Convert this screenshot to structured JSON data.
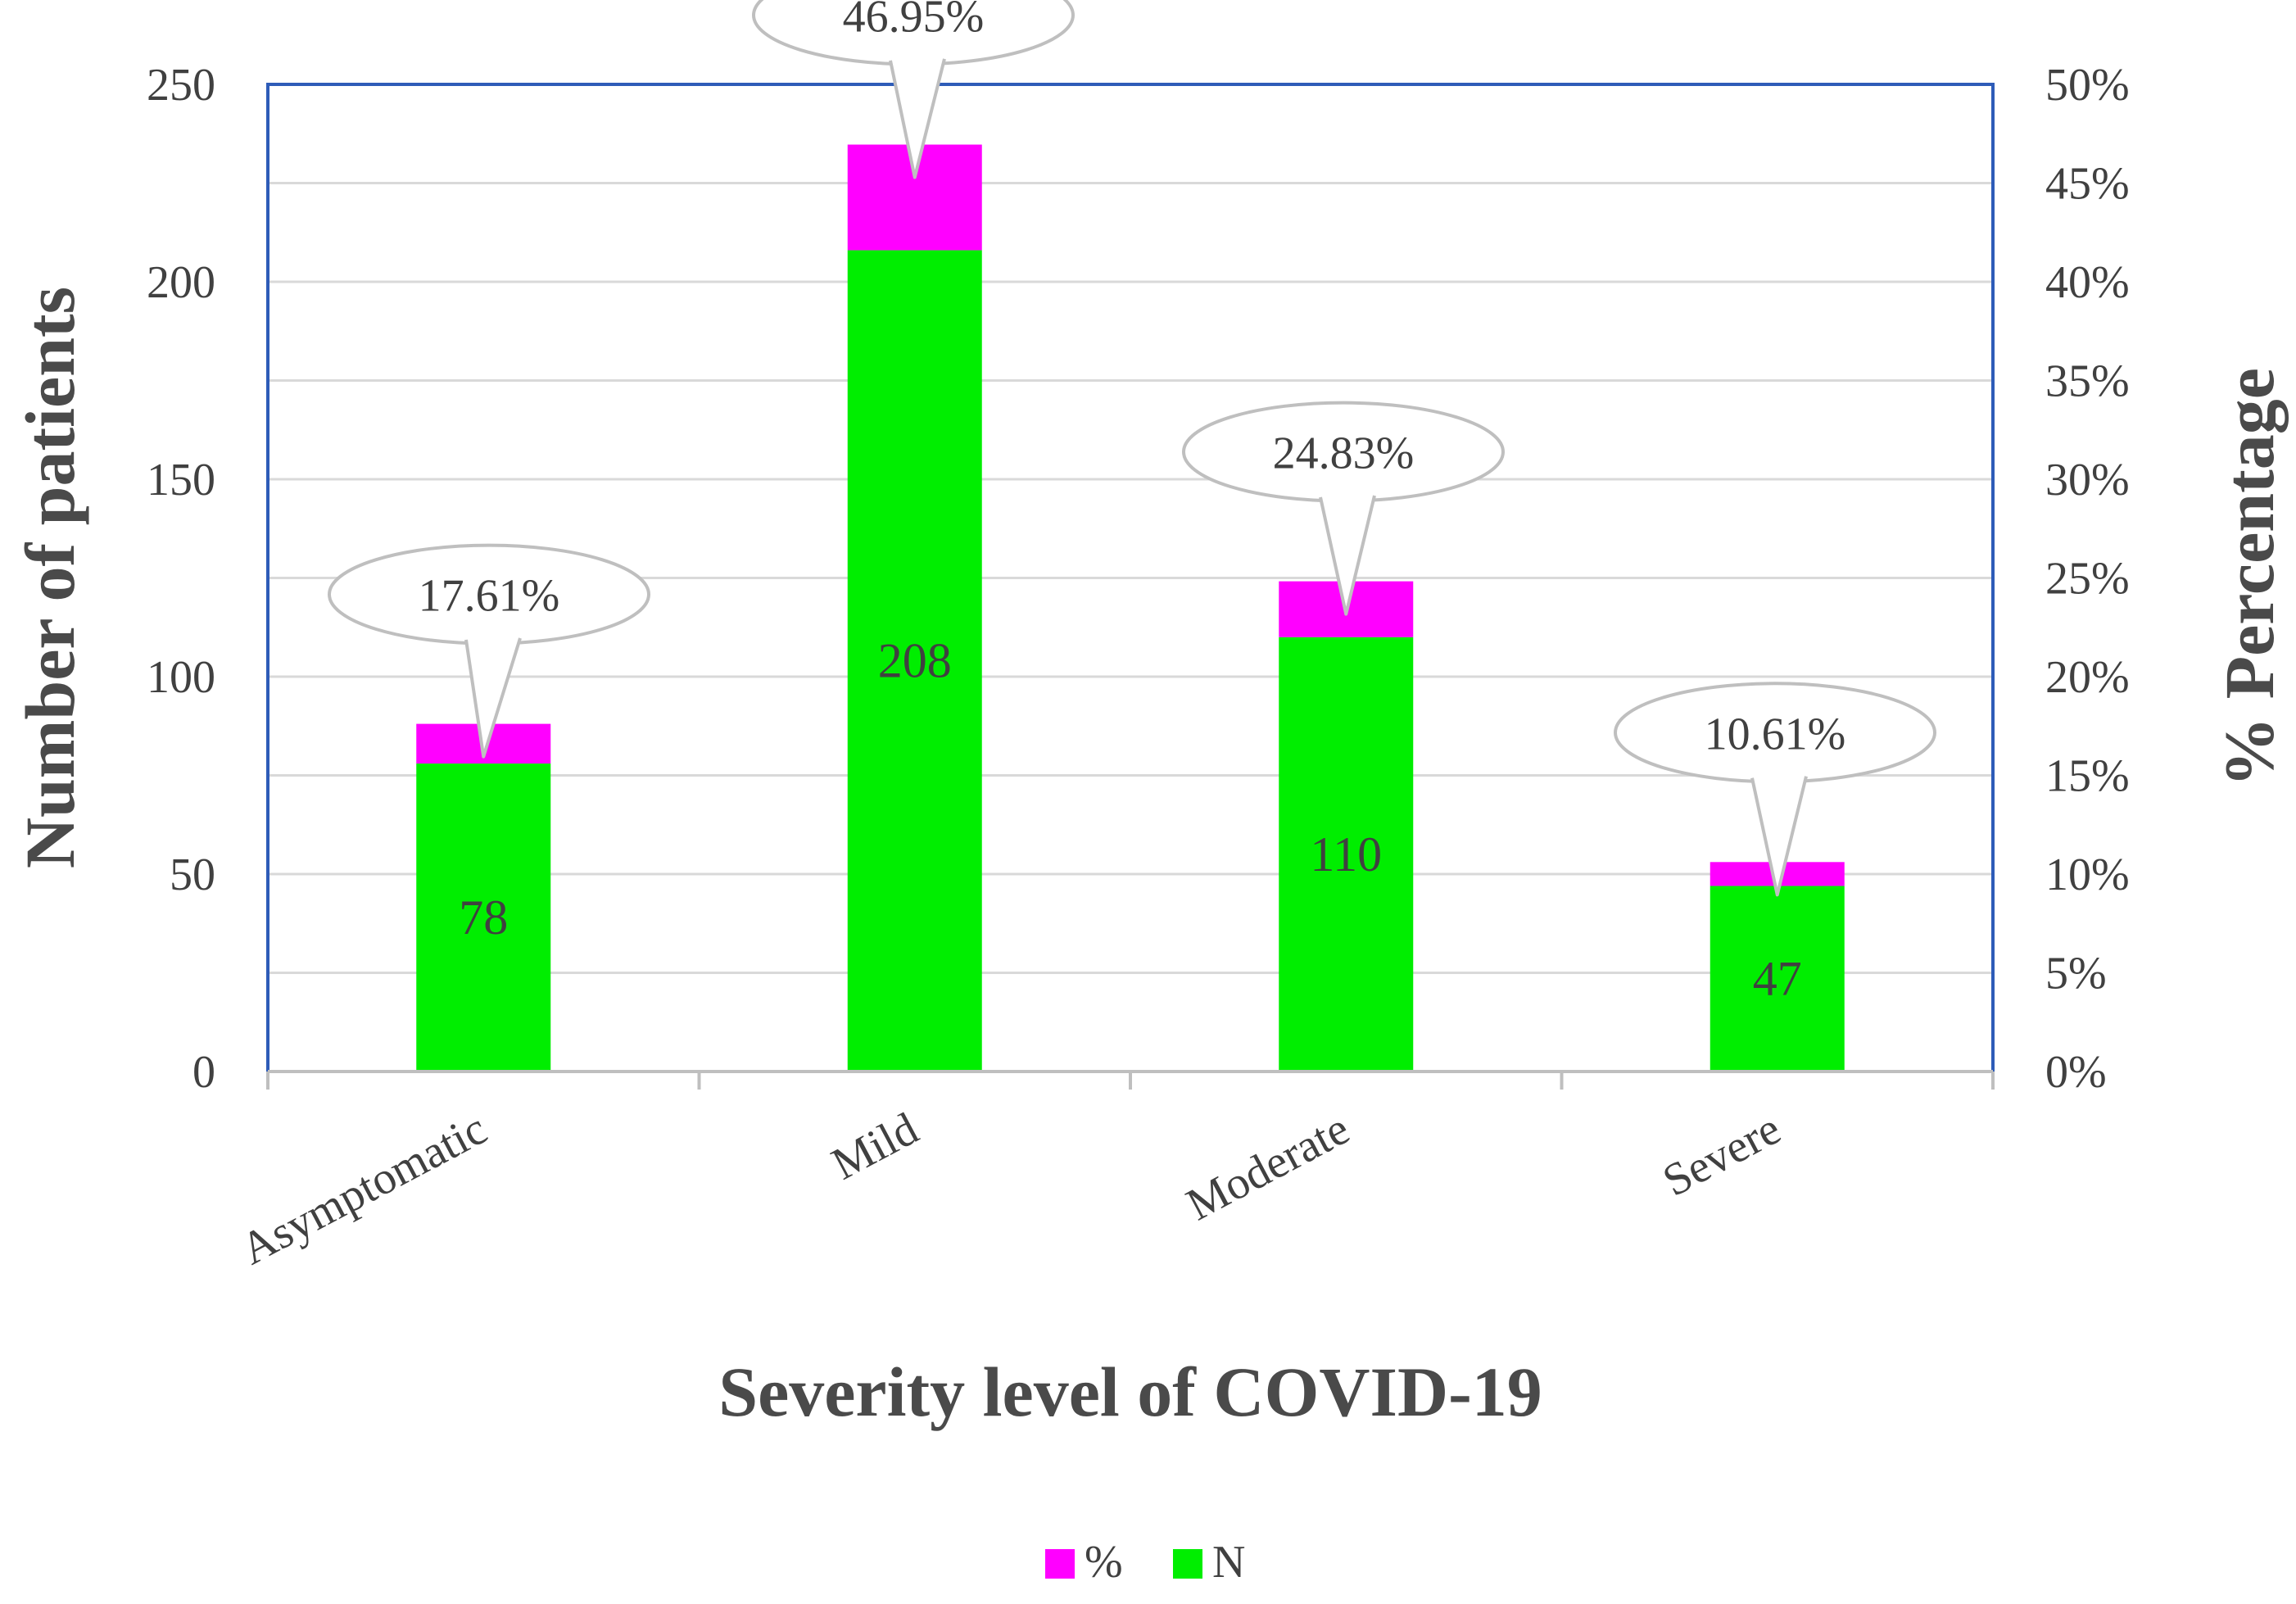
{
  "chart_data": {
    "type": "bar",
    "stacked": true,
    "categories": [
      "Asymptomatic",
      "Mild",
      "Moderate",
      "Severe"
    ],
    "series": [
      {
        "name": "N",
        "values": [
          78,
          208,
          110,
          47
        ],
        "color": "#00ee00"
      },
      {
        "name": "%",
        "values": [
          17.61,
          46.95,
          24.83,
          10.61
        ],
        "color": "#ff00ff"
      }
    ],
    "percent_labels": [
      "17.61%",
      "46.95%",
      "24.83%",
      "10.61%"
    ],
    "count_labels": [
      "78",
      "208",
      "110",
      "47"
    ],
    "xlabel": "Severity level of COVID-19",
    "ylabel": "Number of patients",
    "y2label": "% Percentage",
    "ylim": [
      0,
      250
    ],
    "y2lim": [
      0,
      50
    ],
    "yticks": [
      "0",
      "50",
      "100",
      "150",
      "200",
      "250"
    ],
    "y2ticks": [
      "0%",
      "5%",
      "10%",
      "15%",
      "20%",
      "25%",
      "30%",
      "35%",
      "40%",
      "45%",
      "50%"
    ],
    "grid": true,
    "legend": [
      "%",
      "N"
    ],
    "legend_position": "bottom",
    "frame_color": "#2e5cb8",
    "grid_color": "#d9d9d9"
  }
}
